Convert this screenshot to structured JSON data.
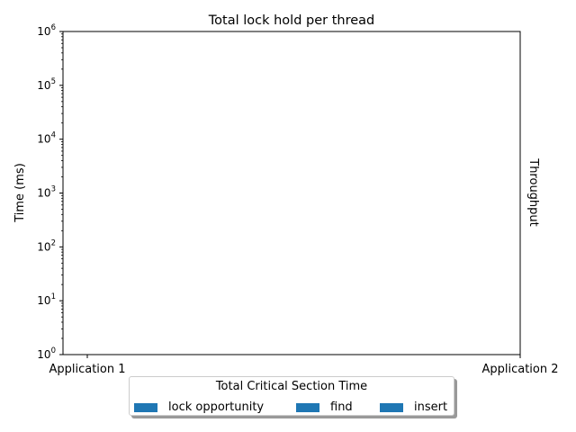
{
  "chart_data": {
    "type": "bar",
    "title": "Total lock hold per thread",
    "ylabel": "Time (ms)",
    "ylabel_right": "Throughput",
    "yscale": "log",
    "ylim": [
      1,
      1000000
    ],
    "y_ticks": [
      {
        "value": 1,
        "exp": "0"
      },
      {
        "value": 10,
        "exp": "1"
      },
      {
        "value": 100,
        "exp": "2"
      },
      {
        "value": 1000,
        "exp": "3"
      },
      {
        "value": 10000,
        "exp": "4"
      },
      {
        "value": 100000,
        "exp": "5"
      },
      {
        "value": 1000000,
        "exp": "6"
      }
    ],
    "tick_base": "10",
    "categories": [
      "Application 1",
      "Application 2"
    ],
    "legend": {
      "title": "Total Critical Section Time",
      "placement": "bottom-center",
      "entries": [
        {
          "label": "lock opportunity",
          "color": "#1f77b4"
        },
        {
          "label": "find",
          "color": "#1f77b4"
        },
        {
          "label": "insert",
          "color": "#1f77b4"
        }
      ]
    },
    "series": [],
    "grid": false
  }
}
